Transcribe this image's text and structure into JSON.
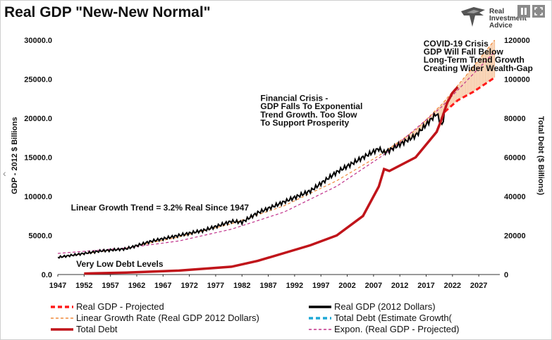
{
  "page": {
    "title": "Real GDP \"New-New Normal\"",
    "logo_text": [
      "Real",
      "Investment",
      "Advice"
    ],
    "pause_icon": "pause-icon",
    "expand_icon": "fullscreen-icon",
    "nav_prev": "‹",
    "nav_next": "›"
  },
  "colors": {
    "gdp": "#000000",
    "gdp_projected": "#ff1a1a",
    "linear": "#f08a3c",
    "expon": "#c0308a",
    "debt": "#c0141a",
    "debt_est": "#1fa9d6"
  },
  "chart_data": {
    "type": "line",
    "title": "Real GDP \"New-New Normal\"",
    "xlabel": "",
    "ylabel": "GDP - 2012 $ Billions",
    "y2label": "Total Debt ($ Billions)",
    "xlim": [
      1947,
      2031
    ],
    "ylim": [
      0,
      30000
    ],
    "y2lim": [
      0,
      120000
    ],
    "x_ticks": [
      1947,
      1952,
      1957,
      1962,
      1967,
      1972,
      1977,
      1982,
      1987,
      1992,
      1997,
      2002,
      2007,
      2012,
      2017,
      2022,
      2027
    ],
    "y_ticks": [
      0,
      5000,
      10000,
      15000,
      20000,
      25000,
      30000
    ],
    "y_tick_labels": [
      "0.0",
      "5000.0",
      "10000.0",
      "15000.0",
      "20000.0",
      "25000.0",
      "30000.0"
    ],
    "y2_ticks": [
      0,
      20000,
      40000,
      60000,
      80000,
      100000,
      120000
    ],
    "y2_tick_labels": [
      "0",
      "20000",
      "40000",
      "60000",
      "80000",
      "100000",
      "120000"
    ],
    "series": [
      {
        "name": "Real GDP (2012 Dollars)",
        "axis": "left",
        "style": "solid-black",
        "x": [
          1947,
          1950,
          1955,
          1960,
          1965,
          1970,
          1975,
          1980,
          1982,
          1985,
          1990,
          1995,
          2000,
          2005,
          2008,
          2009,
          2010,
          2015,
          2019,
          2020,
          2020.5
        ],
        "y": [
          2200,
          2500,
          3000,
          3300,
          4300,
          5000,
          5700,
          6800,
          6700,
          7900,
          9300,
          10700,
          13100,
          15000,
          16100,
          15600,
          15900,
          17800,
          20600,
          19000,
          20800
        ]
      },
      {
        "name": "Real GDP - Projected",
        "axis": "left",
        "style": "dashed-red",
        "x": [
          2020.5,
          2023,
          2026,
          2030
        ],
        "y": [
          20800,
          22300,
          23400,
          25200
        ]
      },
      {
        "name": "Linear Growth Rate (Real GDP 2012 Dollars)",
        "axis": "left",
        "style": "dashed-orange",
        "x": [
          1947,
          1960,
          1970,
          1980,
          1990,
          2000,
          2008,
          2015,
          2020,
          2025,
          2030
        ],
        "y": [
          2200,
          3400,
          4800,
          6500,
          8800,
          12000,
          15200,
          18500,
          21800,
          25800,
          30000
        ]
      },
      {
        "name": "Total Debt (Estimate Growth(",
        "axis": "right",
        "style": "dashed-blue",
        "x": [],
        "y": []
      },
      {
        "name": "Total Debt",
        "axis": "right",
        "style": "solid-red",
        "x": [
          1952,
          1960,
          1970,
          1980,
          1985,
          1990,
          1995,
          2000,
          2005,
          2008,
          2009,
          2010,
          2015,
          2019,
          2020,
          2021,
          2022,
          2023
        ],
        "y": [
          500,
          1000,
          2000,
          4000,
          7000,
          11000,
          15000,
          20000,
          30000,
          45000,
          54000,
          53000,
          60000,
          73000,
          80000,
          88000,
          93000,
          96000
        ]
      },
      {
        "name": "Expon. (Real GDP - Projected)",
        "axis": "left",
        "style": "dashed-pink",
        "x": [
          1947,
          1960,
          1970,
          1980,
          1990,
          2000,
          2010,
          2020,
          2030
        ],
        "y": [
          2700,
          3400,
          4300,
          5800,
          8000,
          11300,
          15800,
          21500,
          28500
        ]
      }
    ],
    "annotations": [
      {
        "text": "COVID-19 Crisis",
        "x": 2016.5,
        "y": 29200
      },
      {
        "text": "GDP Will Fall Below",
        "x": 2016.5,
        "y": 28150
      },
      {
        "text": "Long-Term Trend Growth",
        "x": 2016.5,
        "y": 27100
      },
      {
        "text": "Creating Wider Wealth-Gap",
        "x": 2016.5,
        "y": 26050
      },
      {
        "text": "Financial Crisis -",
        "x": 1985.5,
        "y": 22200
      },
      {
        "text": "GDP Falls To Exponential",
        "x": 1985.5,
        "y": 21150
      },
      {
        "text": "Trend Growth. Too Slow",
        "x": 1985.5,
        "y": 20100
      },
      {
        "text": "To Support Prosperity",
        "x": 1985.5,
        "y": 19050
      },
      {
        "text": "Linear Growth Trend = 3.2% Real Since 1947",
        "x": 1949.5,
        "y": 8200
      },
      {
        "text": "Very Low Debt Levels",
        "x": 1950.5,
        "y": 1000
      }
    ],
    "legend": [
      {
        "label": "Real GDP - Projected",
        "style": "dashed-red"
      },
      {
        "label": "Real GDP (2012 Dollars)",
        "style": "solid-black"
      },
      {
        "label": "Linear Growth Rate (Real GDP 2012 Dollars)",
        "style": "dashed-orange"
      },
      {
        "label": "Total Debt (Estimate Growth(",
        "style": "dashed-blue"
      },
      {
        "label": "Total Debt",
        "style": "solid-red"
      },
      {
        "label": "Expon. (Real GDP - Projected)",
        "style": "dashed-pink"
      }
    ],
    "legend_position": "bottom"
  }
}
